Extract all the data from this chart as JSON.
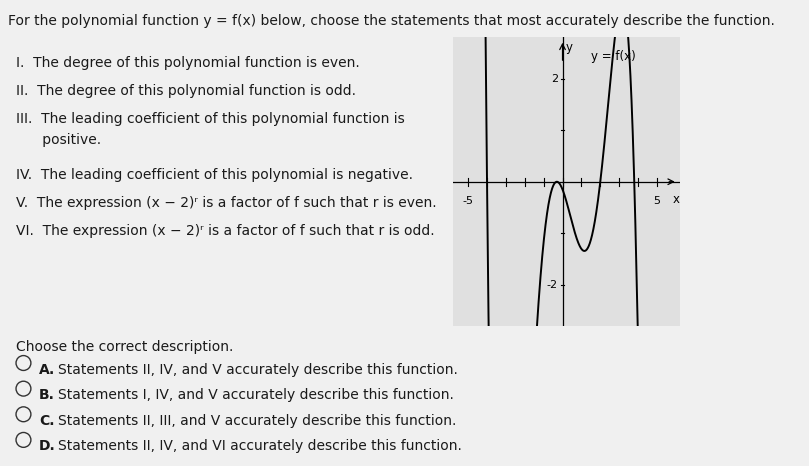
{
  "bg_color": "#f0f0f0",
  "text_color": "#1a1a1a",
  "title": "For the polynomial function y = f(x) below, choose the statements that most accurately describe the function.",
  "statements": [
    "I.  The degree of this polynomial function is even.",
    "II.  The degree of this polynomial function is odd.",
    "III.  The leading coefficient of this polynomial function is\n      positive.",
    "IV.  The leading coefficient of this polynomial is negative.",
    "V.  The expression (x − 2)ʳ is a factor of f such that r is even.",
    "VI.  The expression (x − 2)ʳ is a factor of f such that r is odd."
  ],
  "question": "Choose the correct description.",
  "options": [
    [
      "A.",
      "Statements II, IV, and V accurately describe this function."
    ],
    [
      "B.",
      "Statements I, IV, and V accurately describe this function."
    ],
    [
      "C.",
      "Statements II, III, and V accurately describe this function."
    ],
    [
      "D.",
      "Statements II, IV, and VI accurately describe this function."
    ]
  ],
  "graph_xlim": [
    -5.8,
    6.2
  ],
  "graph_ylim": [
    -2.8,
    2.8
  ],
  "graph_bg": "#e0e0e0",
  "curve_color": "#000000",
  "font_size": 10.0,
  "title_font_size": 10.0
}
